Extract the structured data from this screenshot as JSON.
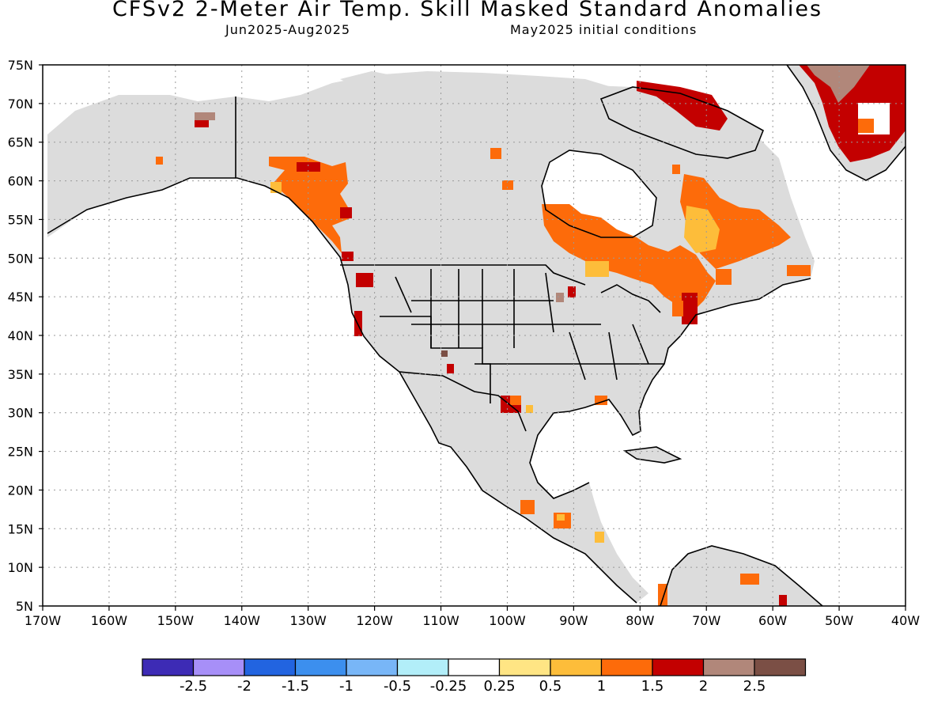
{
  "header": {
    "title": "CFSv2 2-Meter Air Temp. Skill Masked Standard Anomalies",
    "period": "Jun2025-Aug2025",
    "init": "May2025 initial conditions"
  },
  "axes": {
    "lat_labels": [
      "75N",
      "70N",
      "65N",
      "60N",
      "55N",
      "50N",
      "45N",
      "40N",
      "35N",
      "30N",
      "25N",
      "20N",
      "15N",
      "10N",
      "5N"
    ],
    "lon_labels": [
      "170W",
      "160W",
      "150W",
      "140W",
      "130W",
      "120W",
      "110W",
      "100W",
      "90W",
      "80W",
      "70W",
      "60W",
      "50W",
      "40W"
    ]
  },
  "colorbar": {
    "colors": [
      "#3d2bb5",
      "#a78ff8",
      "#2264e0",
      "#3c8fee",
      "#78b6f7",
      "#b2eef9",
      "#ffffff",
      "#ffe584",
      "#fdbd3a",
      "#fd6b0a",
      "#c30000",
      "#b1877a",
      "#7b4f45"
    ],
    "labels": [
      "-2.5",
      "-2",
      "-1.5",
      "-1",
      "-0.5",
      "-0.25",
      "0.25",
      "0.5",
      "1",
      "1.5",
      "2",
      "2.5"
    ]
  },
  "fill_colors": {
    "masked": "#dcdcdc",
    "c05": "#ffe584",
    "c1": "#fdbd3a",
    "c15": "#fd6b0a",
    "c2": "#c30000",
    "c25": "#b1877a",
    "c3": "#7b4f45"
  }
}
